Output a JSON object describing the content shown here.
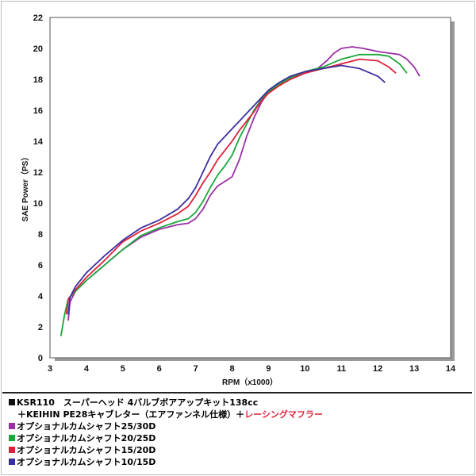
{
  "chart_data": {
    "type": "line",
    "xlabel": "RPM（x1000）",
    "ylabel": "SAE Power（PS）",
    "xlim": [
      3,
      14
    ],
    "ylim": [
      0,
      22
    ],
    "xticks": [
      3,
      4,
      5,
      6,
      7,
      8,
      9,
      10,
      11,
      12,
      13,
      14
    ],
    "yticks": [
      0,
      2,
      4,
      6,
      8,
      10,
      12,
      14,
      16,
      18,
      20,
      22
    ],
    "grid": false,
    "series": [
      {
        "name": "オプショナルカムシャフト25/30D",
        "color": "#9b2fa6",
        "points": [
          [
            3.5,
            2.4
          ],
          [
            3.55,
            3.6
          ],
          [
            3.7,
            4.3
          ],
          [
            4.0,
            5.0
          ],
          [
            4.5,
            6.0
          ],
          [
            5.0,
            7.0
          ],
          [
            5.5,
            7.8
          ],
          [
            6.0,
            8.3
          ],
          [
            6.5,
            8.6
          ],
          [
            6.8,
            8.7
          ],
          [
            7.0,
            9.0
          ],
          [
            7.2,
            9.6
          ],
          [
            7.4,
            10.5
          ],
          [
            7.6,
            11.1
          ],
          [
            7.8,
            11.4
          ],
          [
            8.0,
            11.7
          ],
          [
            8.2,
            12.8
          ],
          [
            8.4,
            14.3
          ],
          [
            8.6,
            15.5
          ],
          [
            8.8,
            16.5
          ],
          [
            9.0,
            17.2
          ],
          [
            9.3,
            17.7
          ],
          [
            9.6,
            18.1
          ],
          [
            10.0,
            18.4
          ],
          [
            10.3,
            18.6
          ],
          [
            10.6,
            19.2
          ],
          [
            10.8,
            19.7
          ],
          [
            11.0,
            20.0
          ],
          [
            11.3,
            20.1
          ],
          [
            11.6,
            20.0
          ],
          [
            12.0,
            19.8
          ],
          [
            12.3,
            19.7
          ],
          [
            12.6,
            19.6
          ],
          [
            12.8,
            19.3
          ],
          [
            13.0,
            18.8
          ],
          [
            13.15,
            18.2
          ]
        ]
      },
      {
        "name": "オプショナルカムシャフト20/25D",
        "color": "#1aa83a",
        "points": [
          [
            3.3,
            1.4
          ],
          [
            3.4,
            2.8
          ],
          [
            3.5,
            3.8
          ],
          [
            3.7,
            4.3
          ],
          [
            4.0,
            5.0
          ],
          [
            4.5,
            6.0
          ],
          [
            5.0,
            7.0
          ],
          [
            5.5,
            7.9
          ],
          [
            6.0,
            8.4
          ],
          [
            6.5,
            8.8
          ],
          [
            6.8,
            9.0
          ],
          [
            7.0,
            9.4
          ],
          [
            7.2,
            10.1
          ],
          [
            7.4,
            11.0
          ],
          [
            7.6,
            11.8
          ],
          [
            7.8,
            12.4
          ],
          [
            8.0,
            13.1
          ],
          [
            8.2,
            14.2
          ],
          [
            8.4,
            15.1
          ],
          [
            8.6,
            16.0
          ],
          [
            8.8,
            16.7
          ],
          [
            9.0,
            17.2
          ],
          [
            9.3,
            17.7
          ],
          [
            9.6,
            18.1
          ],
          [
            10.0,
            18.5
          ],
          [
            10.5,
            18.8
          ],
          [
            11.0,
            19.3
          ],
          [
            11.5,
            19.6
          ],
          [
            12.0,
            19.6
          ],
          [
            12.3,
            19.5
          ],
          [
            12.6,
            19.0
          ],
          [
            12.8,
            18.4
          ]
        ]
      },
      {
        "name": "オプショナルカムシャフト15/20D",
        "color": "#e0203a",
        "points": [
          [
            3.45,
            2.8
          ],
          [
            3.5,
            3.8
          ],
          [
            3.7,
            4.4
          ],
          [
            4.0,
            5.2
          ],
          [
            4.5,
            6.3
          ],
          [
            5.0,
            7.5
          ],
          [
            5.5,
            8.2
          ],
          [
            6.0,
            8.7
          ],
          [
            6.5,
            9.3
          ],
          [
            6.8,
            9.8
          ],
          [
            7.0,
            10.5
          ],
          [
            7.2,
            11.3
          ],
          [
            7.4,
            12.0
          ],
          [
            7.6,
            12.8
          ],
          [
            7.8,
            13.4
          ],
          [
            8.0,
            14.0
          ],
          [
            8.2,
            14.7
          ],
          [
            8.4,
            15.3
          ],
          [
            8.6,
            15.9
          ],
          [
            8.8,
            16.6
          ],
          [
            9.0,
            17.1
          ],
          [
            9.3,
            17.6
          ],
          [
            9.6,
            18.0
          ],
          [
            10.0,
            18.4
          ],
          [
            10.5,
            18.7
          ],
          [
            11.0,
            19.0
          ],
          [
            11.5,
            19.3
          ],
          [
            12.0,
            19.2
          ],
          [
            12.3,
            18.8
          ],
          [
            12.5,
            18.4
          ]
        ]
      },
      {
        "name": "オプショナルカムシャフト10/15D",
        "color": "#3a2fa0",
        "points": [
          [
            3.5,
            2.8
          ],
          [
            3.55,
            3.9
          ],
          [
            3.7,
            4.6
          ],
          [
            4.0,
            5.5
          ],
          [
            4.5,
            6.6
          ],
          [
            5.0,
            7.6
          ],
          [
            5.5,
            8.4
          ],
          [
            6.0,
            8.9
          ],
          [
            6.5,
            9.6
          ],
          [
            6.8,
            10.3
          ],
          [
            7.0,
            11.0
          ],
          [
            7.2,
            12.0
          ],
          [
            7.4,
            13.0
          ],
          [
            7.6,
            13.8
          ],
          [
            7.8,
            14.3
          ],
          [
            8.0,
            14.8
          ],
          [
            8.2,
            15.3
          ],
          [
            8.4,
            15.8
          ],
          [
            8.6,
            16.3
          ],
          [
            8.8,
            16.8
          ],
          [
            9.0,
            17.3
          ],
          [
            9.3,
            17.8
          ],
          [
            9.6,
            18.2
          ],
          [
            10.0,
            18.5
          ],
          [
            10.5,
            18.7
          ],
          [
            11.0,
            18.9
          ],
          [
            11.5,
            18.7
          ],
          [
            12.0,
            18.2
          ],
          [
            12.2,
            17.8
          ]
        ]
      }
    ]
  },
  "caption": {
    "line1_marker_color": "#111111",
    "line1": "KSR110　スーパーヘッド 4バルブボアアップキット138cc",
    "line2_prefix": "　＋KEIHIN PE28キャブレター（エアファンネル仕様）＋",
    "line2_highlight": "レーシングマフラー",
    "line2_highlight_color": "#e0203a"
  }
}
